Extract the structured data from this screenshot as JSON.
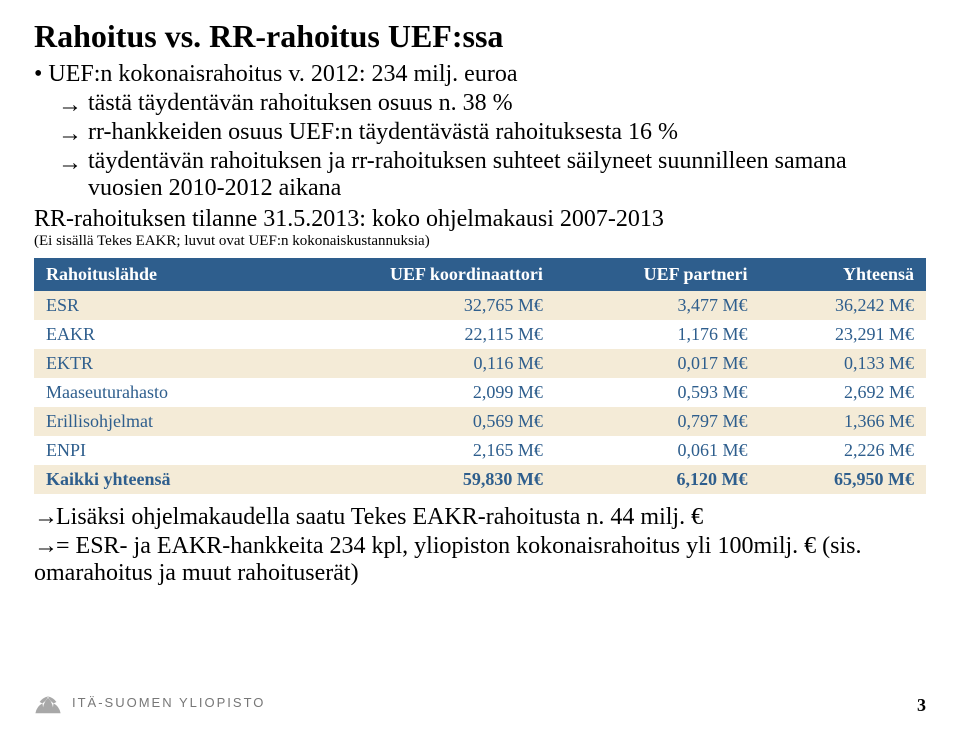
{
  "title": "Rahoitus vs. RR-rahoitus UEF:ssa",
  "bullet1": "• UEF:n kokonaisrahoitus v. 2012:  234 milj. euroa",
  "arrow1": "tästä täydentävän rahoituksen osuus n. 38 %",
  "arrow2": "rr-hankkeiden osuus UEF:n täydentävästä rahoituksesta 16 %",
  "arrow3": "täydentävän rahoituksen ja rr-rahoituksen suhteet säilyneet suunnilleen samana vuosien 2010-2012 aikana",
  "subHeading": "RR-rahoituksen tilanne 31.5.2013: koko ohjelmakausi 2007-2013",
  "note": "(Ei sisällä Tekes EAKR; luvut ovat UEF:n kokonaiskustannuksia)",
  "arrowGlyph": "→",
  "table": {
    "headerBg": "#2e5e8d",
    "headerColor": "#ffffff",
    "rowOdd": "#f4ebd7",
    "rowEven": "#ffffff",
    "cellColor": "#2e5e8d",
    "columns": [
      "Rahoituslähde",
      "UEF koordinaattori",
      "UEF partneri",
      "Yhteensä"
    ],
    "rows": [
      [
        "ESR",
        "32,765 M€",
        "3,477 M€",
        "36,242 M€"
      ],
      [
        "EAKR",
        "22,115 M€",
        "1,176 M€",
        "23,291 M€"
      ],
      [
        "EKTR",
        "0,116 M€",
        "0,017 M€",
        "0,133 M€"
      ],
      [
        "Maaseuturahasto",
        "2,099 M€",
        "0,593 M€",
        "2,692 M€"
      ],
      [
        "Erillisohjelmat",
        "0,569 M€",
        "0,797 M€",
        "1,366 M€"
      ],
      [
        "ENPI",
        "2,165 M€",
        "0,061 M€",
        "2,226 M€"
      ]
    ],
    "totalRow": [
      "Kaikki yhteensä",
      "59,830 M€",
      "6,120 M€",
      "65,950 M€"
    ]
  },
  "after1": "Lisäksi ohjelmakaudella saatu Tekes EAKR-rahoitusta n. 44 milj. €",
  "after2": "= ESR- ja EAKR-hankkeita 234 kpl, yliopiston kokonaisrahoitus yli 100milj. € (sis. omarahoitus ja muut rahoituserät)",
  "footerText": "ITÄ-SUOMEN YLIOPISTO",
  "pageNum": "3",
  "logoColor": "#a8a8a8"
}
